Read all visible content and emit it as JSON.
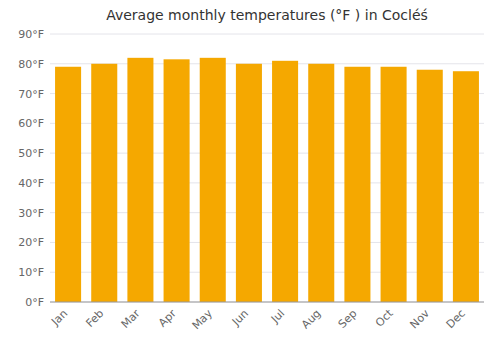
{
  "chart_data": {
    "type": "bar",
    "title": "Average monthly temperatures (°F ) in Cocléś",
    "categories": [
      "Jan",
      "Feb",
      "Mar",
      "Apr",
      "May",
      "Jun",
      "Jul",
      "Aug",
      "Sep",
      "Oct",
      "Nov",
      "Dec"
    ],
    "values": [
      79.0,
      80.0,
      82.0,
      81.5,
      82.0,
      80.0,
      81.0,
      80.0,
      79.0,
      79.0,
      78.0,
      77.5
    ],
    "color": "#F5A800",
    "ylim": [
      0,
      90
    ],
    "yticks": [
      {
        "value": 0,
        "label": "0°F"
      },
      {
        "value": 10,
        "label": "10°F"
      },
      {
        "value": 20,
        "label": "20°F"
      },
      {
        "value": 30,
        "label": "30°F"
      },
      {
        "value": 40,
        "label": "40°F"
      },
      {
        "value": 50,
        "label": "50°F"
      },
      {
        "value": 60,
        "label": "60°F"
      },
      {
        "value": 70,
        "label": "70°F"
      },
      {
        "value": 80,
        "label": "80°F"
      },
      {
        "value": 90,
        "label": "90°F"
      }
    ],
    "grid": true
  }
}
